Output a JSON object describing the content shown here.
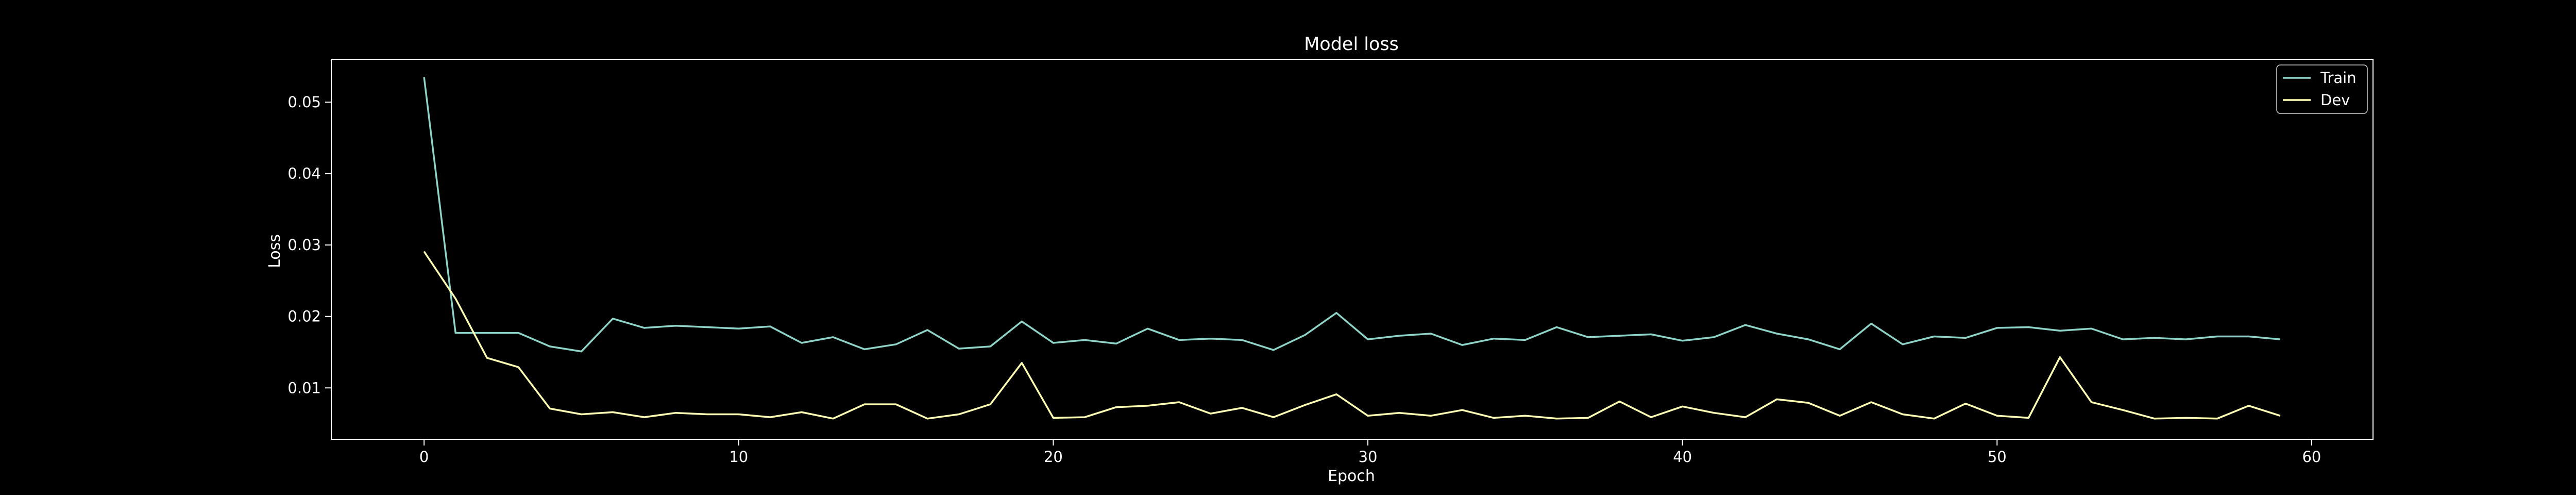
{
  "chart_data": {
    "type": "line",
    "title": "Model loss",
    "xlabel": "Epoch",
    "ylabel": "Loss",
    "xlim": [
      -2.95,
      61.95
    ],
    "ylim": [
      0.0028,
      0.056
    ],
    "xticks": [
      0,
      10,
      20,
      30,
      40,
      50,
      60
    ],
    "yticks": [
      0.01,
      0.02,
      0.03,
      0.04,
      0.05
    ],
    "legend_position": "top-right",
    "grid": false,
    "x": [
      0,
      1,
      2,
      3,
      4,
      5,
      6,
      7,
      8,
      9,
      10,
      11,
      12,
      13,
      14,
      15,
      16,
      17,
      18,
      19,
      20,
      21,
      22,
      23,
      24,
      25,
      26,
      27,
      28,
      29,
      30,
      31,
      32,
      33,
      34,
      35,
      36,
      37,
      38,
      39,
      40,
      41,
      42,
      43,
      44,
      45,
      46,
      47,
      48,
      49,
      50,
      51,
      52,
      53,
      54,
      55,
      56,
      57,
      58,
      59
    ],
    "series": [
      {
        "name": "Train",
        "color": "#8dd3c7",
        "values": [
          0.0535,
          0.0177,
          0.0177,
          0.0177,
          0.0158,
          0.0151,
          0.0197,
          0.0184,
          0.0187,
          0.0185,
          0.0183,
          0.0186,
          0.0163,
          0.0171,
          0.0154,
          0.0161,
          0.0181,
          0.0155,
          0.0158,
          0.0193,
          0.0163,
          0.0167,
          0.0162,
          0.0183,
          0.0167,
          0.0169,
          0.0167,
          0.0153,
          0.0174,
          0.0205,
          0.0168,
          0.0173,
          0.0176,
          0.016,
          0.0169,
          0.0167,
          0.0185,
          0.0171,
          0.0173,
          0.0175,
          0.0166,
          0.0171,
          0.0188,
          0.0176,
          0.0168,
          0.0154,
          0.019,
          0.0161,
          0.0172,
          0.017,
          0.0184,
          0.0185,
          0.018,
          0.0183,
          0.0168,
          0.017,
          0.0168,
          0.0172,
          0.0172,
          0.0168
        ]
      },
      {
        "name": "Dev",
        "color": "#ffffb3",
        "values": [
          0.0291,
          0.0225,
          0.0142,
          0.0129,
          0.0071,
          0.0063,
          0.0066,
          0.0059,
          0.0065,
          0.0063,
          0.0063,
          0.0059,
          0.0066,
          0.0057,
          0.0077,
          0.0077,
          0.0057,
          0.0063,
          0.0077,
          0.0135,
          0.0058,
          0.0059,
          0.0073,
          0.0075,
          0.008,
          0.0064,
          0.0072,
          0.0059,
          0.0076,
          0.0091,
          0.0061,
          0.0065,
          0.0061,
          0.0069,
          0.0058,
          0.0061,
          0.0057,
          0.0058,
          0.0081,
          0.0059,
          0.0074,
          0.0065,
          0.0059,
          0.0084,
          0.0079,
          0.0061,
          0.008,
          0.0063,
          0.0057,
          0.0078,
          0.0061,
          0.0058,
          0.0143,
          0.008,
          0.0069,
          0.0057,
          0.0058,
          0.0057,
          0.0075,
          0.0061
        ]
      }
    ]
  }
}
